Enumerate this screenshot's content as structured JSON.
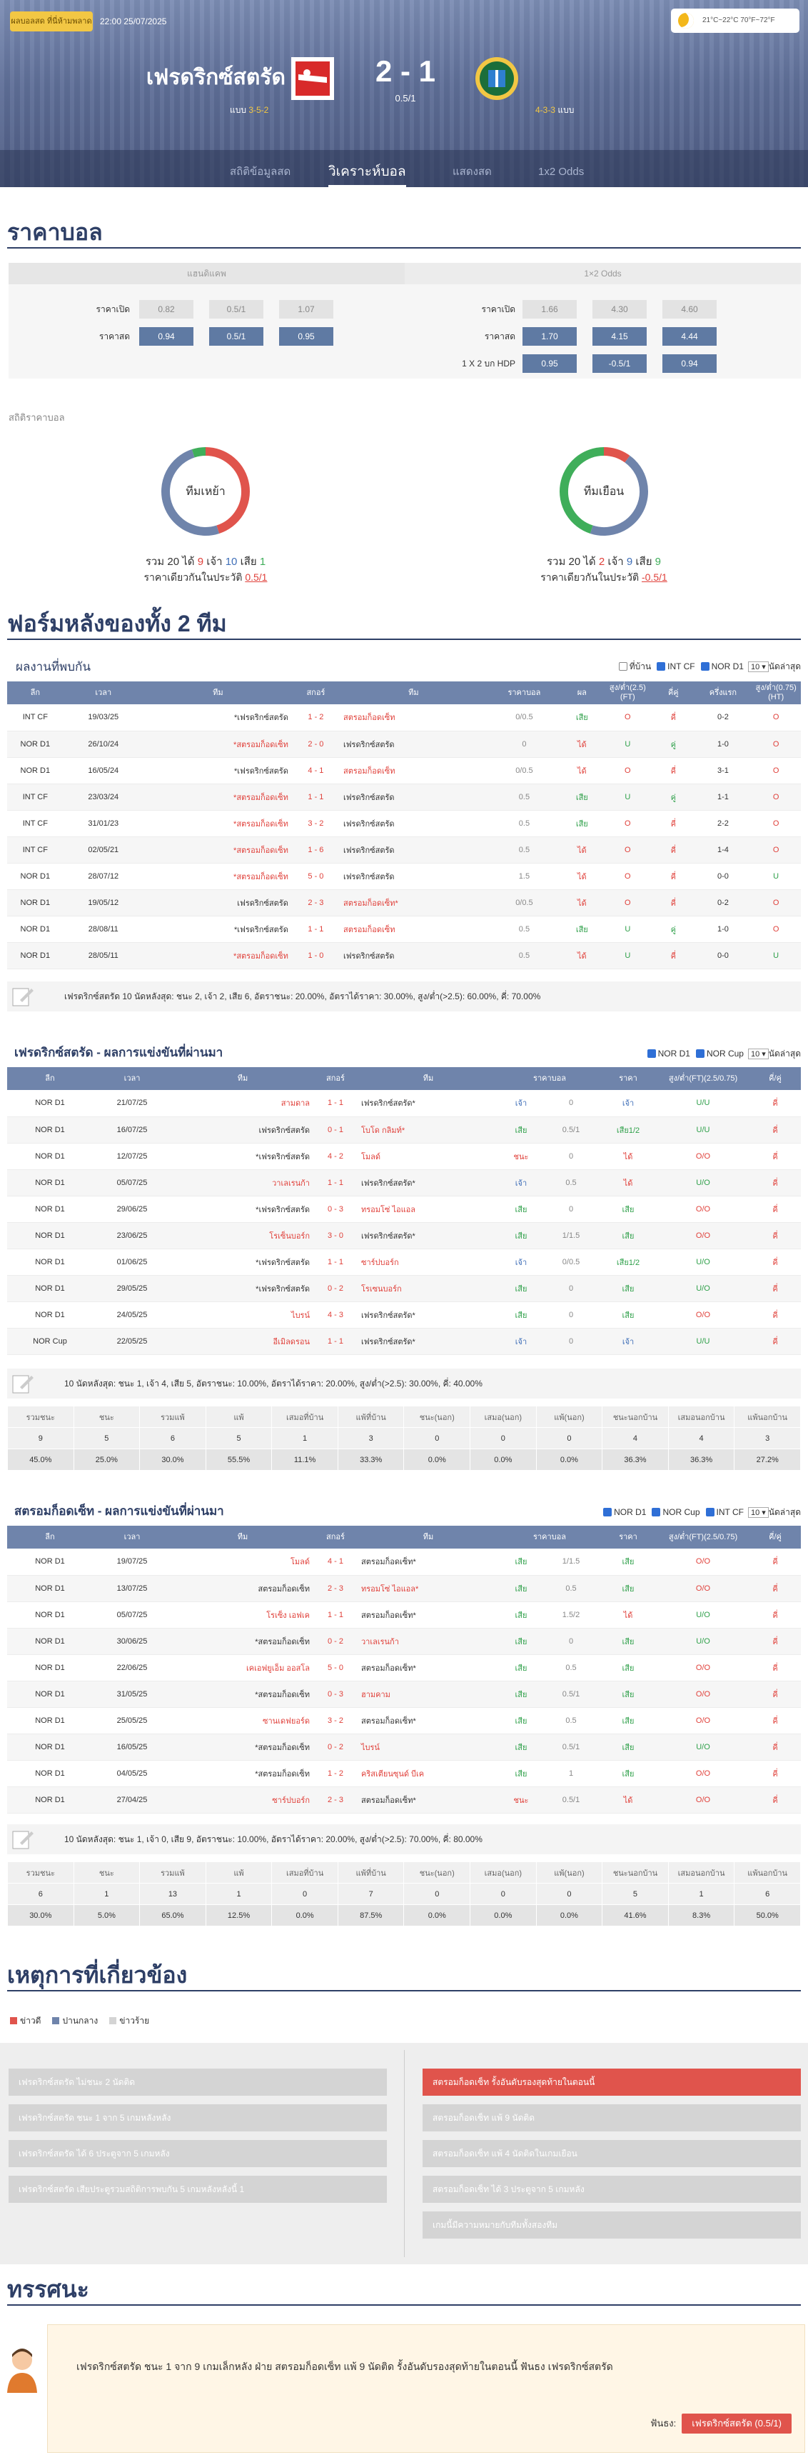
{
  "header": {
    "live_badge": "ผลบอลสด ที่นี่ห้ามพลาด",
    "kickoff": "22:00 25/07/2025",
    "weather": "21°C~22°C 70°F~72°F",
    "home_team": "เฟรดริกซ์สตรัด",
    "away_team": "สตรอมก็อดเซ็ท",
    "score": "2 - 1",
    "handicap": "0.5/1",
    "home_form_label": "แบบ",
    "home_form": "3-5-2",
    "away_form": "4-3-3",
    "away_form_label": "แบบ",
    "tabs": [
      "สถิติข้อมูลสด",
      "วิเคราะห์บอล",
      "แสดงสด",
      "1x2 Odds"
    ],
    "active_tab": "วิเคราะห์บอล"
  },
  "odds": {
    "title": "ราคาบอล",
    "left_head": "แฮนดิแคพ",
    "right_head": "1×2 Odds",
    "ah_rows": [
      {
        "label": "ราคาเปิด",
        "vals": [
          "0.82",
          "0.5/1",
          "1.07"
        ]
      },
      {
        "label": "ราคาสด",
        "vals": [
          "0.94",
          "0.5/1",
          "0.95"
        ]
      }
    ],
    "x12_rows": [
      {
        "label": "ราคาเปิด",
        "vals": [
          "1.66",
          "4.30",
          "4.60"
        ]
      },
      {
        "label": "ราคาสด",
        "vals": [
          "1.70",
          "4.15",
          "4.44"
        ]
      },
      {
        "label": "1 X 2 บก HDP",
        "vals": [
          "0.95",
          "-0.5/1",
          "0.94"
        ]
      }
    ],
    "stats_label": "สถิติราคาบอล",
    "home_donut": {
      "label": "ทีมเหย้า",
      "total": "20",
      "lose": "9",
      "draw": "10",
      "win": "1",
      "total_l": "รวม",
      "lose_l": "ได้",
      "draw_l": "เจ้า",
      "win_l": "เสีย",
      "same_l": "ราคาเดียวกันในประวัติ",
      "same": "0.5/1",
      "colors": [
        "#e0544c",
        "#6f84ab",
        "#3fae5a"
      ],
      "values": [
        9,
        10,
        1
      ]
    },
    "away_donut": {
      "label": "ทีมเยือน",
      "total": "20",
      "lose": "2",
      "draw": "9",
      "win": "9",
      "total_l": "รวม",
      "lose_l": "ได้",
      "draw_l": "เจ้า",
      "win_l": "เสีย",
      "same_l": "ราคาเดียวกันในประวัติ",
      "same": "-0.5/1",
      "colors": [
        "#e0544c",
        "#6f84ab",
        "#3fae5a"
      ],
      "values": [
        2,
        9,
        9
      ]
    }
  },
  "form_title": "ฟอร์มหลังของทั้ง 2 ทีม",
  "h2h": {
    "title": "ผลงานที่พบกัน",
    "filters": [
      "ที่บ้าน",
      "INT CF",
      "NOR D1"
    ],
    "filter_on": [
      false,
      true,
      true
    ],
    "count": "10",
    "count_suffix": "นัดล่าสุด",
    "cols": [
      "ลีก",
      "เวลา",
      "ทีม",
      "สกอร์",
      "ทีม",
      "ราคาบอล",
      "ผล",
      "สูง/ต่ำ(2.5)(FT)",
      "คี่คู่",
      "ครึ่งแรก",
      "สูง/ต่ำ(0.75)(HT)"
    ],
    "rows": [
      [
        "INT CF",
        "19/03/25",
        "*เฟรดริกซ์สตรัด",
        "1 - 2",
        "สตรอมก็อดเซ็ท",
        "0/0.5",
        "เสีย",
        "O",
        "คี่",
        "0-2",
        "O"
      ],
      [
        "NOR D1",
        "26/10/24",
        "*สตรอมก็อดเซ็ท",
        "2 - 0",
        "เฟรดริกซ์สตรัด",
        "0",
        "ได้",
        "U",
        "คู่",
        "1-0",
        "O"
      ],
      [
        "NOR D1",
        "16/05/24",
        "*เฟรดริกซ์สตรัด",
        "4 - 1",
        "สตรอมก็อดเซ็ท",
        "0/0.5",
        "ได้",
        "O",
        "คี่",
        "3-1",
        "O"
      ],
      [
        "INT CF",
        "23/03/24",
        "*สตรอมก็อดเซ็ท",
        "1 - 1",
        "เฟรดริกซ์สตรัด",
        "0.5",
        "เสีย",
        "U",
        "คู่",
        "1-1",
        "O"
      ],
      [
        "INT CF",
        "31/01/23",
        "*สตรอมก็อดเซ็ท",
        "3 - 2",
        "เฟรดริกซ์สตรัด",
        "0.5",
        "เสีย",
        "O",
        "คี่",
        "2-2",
        "O"
      ],
      [
        "INT CF",
        "02/05/21",
        "*สตรอมก็อดเซ็ท",
        "1 - 6",
        "เฟรดริกซ์สตรัด",
        "0.5",
        "ได้",
        "O",
        "คี่",
        "1-4",
        "O"
      ],
      [
        "NOR D1",
        "28/07/12",
        "*สตรอมก็อดเซ็ท",
        "5 - 0",
        "เฟรดริกซ์สตรัด",
        "1.5",
        "ได้",
        "O",
        "คี่",
        "0-0",
        "U"
      ],
      [
        "NOR D1",
        "19/05/12",
        "เฟรดริกซ์สตรัด",
        "2 - 3",
        "สตรอมก็อดเซ็ท*",
        "0/0.5",
        "ได้",
        "O",
        "คี่",
        "0-2",
        "O"
      ],
      [
        "NOR D1",
        "28/08/11",
        "*เฟรดริกซ์สตรัด",
        "1 - 1",
        "สตรอมก็อดเซ็ท",
        "0.5",
        "เสีย",
        "U",
        "คู่",
        "1-0",
        "O"
      ],
      [
        "NOR D1",
        "28/05/11",
        "*สตรอมก็อดเซ็ท",
        "1 - 0",
        "เฟรดริกซ์สตรัด",
        "0.5",
        "ได้",
        "U",
        "คี่",
        "0-0",
        "U"
      ]
    ],
    "summary": "เฟรดริกซ์สตรัด 10 นัดหลังสุด: ชนะ 2, เจ้า 2, เสีย 6, อัตราชนะ: 20.00%, อัตราได้ราคา: 30.00%, สูง/ต่ำ(>2.5): 60.00%, คี่: 70.00%"
  },
  "home_recent": {
    "title": "เฟรดริกซ์สตรัด - ผลการแข่งขันที่ผ่านมา",
    "filters": [
      "NOR D1",
      "NOR Cup"
    ],
    "filter_on": [
      true,
      true
    ],
    "count": "10",
    "count_suffix": "นัดล่าสุด",
    "cols": [
      "ลีก",
      "เวลา",
      "ทีม",
      "สกอร์",
      "ทีม",
      "ราคาบอล",
      "ราคา",
      "สูง/ต่ำ(FT)(2.5/0.75)",
      "คี่/คู่"
    ],
    "rows": [
      [
        "NOR D1",
        "21/07/25",
        "สามดาล",
        "1 - 1",
        "เฟรดริกซ์สตรัด*",
        "เจ้า",
        "0",
        "เจ้า",
        "U/U",
        "คี่"
      ],
      [
        "NOR D1",
        "16/07/25",
        "เฟรดริกซ์สตรัด",
        "0 - 1",
        "โบโด กลิมท์*",
        "เสีย",
        "0.5/1",
        "เสีย1/2",
        "U/U",
        "คี่"
      ],
      [
        "NOR D1",
        "12/07/25",
        "*เฟรดริกซ์สตรัด",
        "4 - 2",
        "โมลด์",
        "ชนะ",
        "0",
        "ได้",
        "O/O",
        "คี่"
      ],
      [
        "NOR D1",
        "05/07/25",
        "วาเลเรนก้า",
        "1 - 1",
        "เฟรดริกซ์สตรัด*",
        "เจ้า",
        "0.5",
        "ได้",
        "U/O",
        "คี่"
      ],
      [
        "NOR D1",
        "29/06/25",
        "*เฟรดริกซ์สตรัด",
        "0 - 3",
        "ทรอมโซ่ ไอแอล",
        "เสีย",
        "0",
        "เสีย",
        "O/O",
        "คี่"
      ],
      [
        "NOR D1",
        "23/06/25",
        "โรเซ็นบอร์ก",
        "3 - 0",
        "เฟรดริกซ์สตรัด*",
        "เสีย",
        "1/1.5",
        "เสีย",
        "O/O",
        "คี่"
      ],
      [
        "NOR D1",
        "01/06/25",
        "*เฟรดริกซ์สตรัด",
        "1 - 1",
        "ซาร์ปบอร์ก",
        "เจ้า",
        "0/0.5",
        "เสีย1/2",
        "U/O",
        "คี่"
      ],
      [
        "NOR D1",
        "29/05/25",
        "*เฟรดริกซ์สตรัด",
        "0 - 2",
        "โรเซนบอร์ก",
        "เสีย",
        "0",
        "เสีย",
        "U/O",
        "คี่"
      ],
      [
        "NOR D1",
        "24/05/25",
        "ไบรน์",
        "4 - 3",
        "เฟรดริกซ์สตรัด*",
        "เสีย",
        "0",
        "เสีย",
        "O/O",
        "คี่"
      ],
      [
        "NOR Cup",
        "22/05/25",
        "อีเมิลดรอน",
        "1 - 1",
        "เฟรดริกซ์สตรัด*",
        "เจ้า",
        "0",
        "เจ้า",
        "U/U",
        "คี่"
      ]
    ],
    "summary": "10 นัดหลังสุด: ชนะ 1, เจ้า 4, เสีย 5, อัตราชนะ: 10.00%, อัตราได้ราคา: 20.00%, สูง/ต่ำ(>2.5): 30.00%, คี่: 40.00%",
    "stat_head": [
      "รวมชนะ",
      "ชนะ",
      "รวมแพ้",
      "แพ้",
      "เสมอที่บ้าน",
      "แพ้ที่บ้าน",
      "ชนะ(นอก)",
      "เสมอ(นอก)",
      "แพ้(นอก)",
      "ชนะนอกบ้าน",
      "เสมอนอกบ้าน",
      "แพ้นอกบ้าน"
    ],
    "stat_vals": [
      "9",
      "5",
      "6",
      "5",
      "1",
      "3",
      "0",
      "0",
      "0",
      "4",
      "4",
      "3"
    ],
    "stat_pct": [
      "45.0%",
      "25.0%",
      "30.0%",
      "55.5%",
      "11.1%",
      "33.3%",
      "0.0%",
      "0.0%",
      "0.0%",
      "36.3%",
      "36.3%",
      "27.2%"
    ]
  },
  "away_recent": {
    "title": "สตรอมก็อดเซ็ท - ผลการแข่งขันที่ผ่านมา",
    "filters": [
      "NOR D1",
      "NOR Cup",
      "INT CF"
    ],
    "filter_on": [
      true,
      true,
      true
    ],
    "count": "10",
    "count_suffix": "นัดล่าสุด",
    "cols": [
      "ลีก",
      "เวลา",
      "ทีม",
      "สกอร์",
      "ทีม",
      "ราคาบอล",
      "ราคา",
      "สูง/ต่ำ(FT)(2.5/0.75)",
      "คี่/คู่"
    ],
    "rows": [
      [
        "NOR D1",
        "19/07/25",
        "โมลด์",
        "4 - 1",
        "สตรอมก็อดเซ็ท*",
        "เสีย",
        "1/1.5",
        "เสีย",
        "O/O",
        "คี่"
      ],
      [
        "NOR D1",
        "13/07/25",
        "สตรอมก็อดเซ็ท",
        "2 - 3",
        "ทรอมโซ่ ไอแอล*",
        "เสีย",
        "0.5",
        "เสีย",
        "O/O",
        "คี่"
      ],
      [
        "NOR D1",
        "05/07/25",
        "โรเซ็ง เอฟเค",
        "1 - 1",
        "สตรอมก็อดเซ็ท*",
        "เสีย",
        "1.5/2",
        "ได้",
        "U/O",
        "คี่"
      ],
      [
        "NOR D1",
        "30/06/25",
        "*สตรอมก็อดเซ็ท",
        "0 - 2",
        "วาเลเรนก้า",
        "เสีย",
        "0",
        "เสีย",
        "U/O",
        "คี่"
      ],
      [
        "NOR D1",
        "22/06/25",
        "เคเอฟยูเอ็ม ออสโล",
        "5 - 0",
        "สตรอมก็อดเซ็ท*",
        "เสีย",
        "0.5",
        "เสีย",
        "O/O",
        "คี่"
      ],
      [
        "NOR D1",
        "31/05/25",
        "*สตรอมก็อดเซ็ท",
        "0 - 3",
        "ฮามคาม",
        "เสีย",
        "0.5/1",
        "เสีย",
        "O/O",
        "คี่"
      ],
      [
        "NOR D1",
        "25/05/25",
        "ซานเดฟยอร์ด",
        "3 - 2",
        "สตรอมก็อดเซ็ท*",
        "เสีย",
        "0.5",
        "เสีย",
        "O/O",
        "คี่"
      ],
      [
        "NOR D1",
        "16/05/25",
        "*สตรอมก็อดเซ็ท",
        "0 - 2",
        "ไบรน์",
        "เสีย",
        "0.5/1",
        "เสีย",
        "U/O",
        "คี่"
      ],
      [
        "NOR D1",
        "04/05/25",
        "*สตรอมก็อดเซ็ท",
        "1 - 2",
        "คริสเตียนซุนด์ บีเค",
        "เสีย",
        "1",
        "เสีย",
        "O/O",
        "คี่"
      ],
      [
        "NOR D1",
        "27/04/25",
        "ซาร์ปบอร์ก",
        "2 - 3",
        "สตรอมก็อดเซ็ท*",
        "ชนะ",
        "0.5/1",
        "ได้",
        "O/O",
        "คี่"
      ]
    ],
    "summary": "10 นัดหลังสุด: ชนะ 1, เจ้า 0, เสีย 9, อัตราชนะ: 10.00%, อัตราได้ราคา: 20.00%, สูง/ต่ำ(>2.5): 70.00%, คี่: 80.00%",
    "stat_head": [
      "รวมชนะ",
      "ชนะ",
      "รวมแพ้",
      "แพ้",
      "เสมอที่บ้าน",
      "แพ้ที่บ้าน",
      "ชนะ(นอก)",
      "เสมอ(นอก)",
      "แพ้(นอก)",
      "ชนะนอกบ้าน",
      "เสมอนอกบ้าน",
      "แพ้นอกบ้าน"
    ],
    "stat_vals": [
      "6",
      "1",
      "13",
      "1",
      "0",
      "7",
      "0",
      "0",
      "0",
      "5",
      "1",
      "6"
    ],
    "stat_pct": [
      "30.0%",
      "5.0%",
      "65.0%",
      "12.5%",
      "0.0%",
      "87.5%",
      "0.0%",
      "0.0%",
      "0.0%",
      "41.6%",
      "8.3%",
      "50.0%"
    ]
  },
  "events": {
    "title": "เหตุการที่เกี่ยวข้อง",
    "legend": [
      "ข่าวดี",
      "ปานกลาง",
      "ข่าวร้าย"
    ],
    "legend_colors": [
      "#e0544c",
      "#6f84ab",
      "#d4d4d4"
    ],
    "left": [
      "เฟรดริกซ์สตรัด ไม่ชนะ 2 นัดติด",
      "เฟรดริกซ์สตรัด ชนะ 1 จาก 5 เกมหลังหลัง",
      "เฟรดริกซ์สตรัด ได้ 6 ประตูจาก 5 เกมหลัง",
      "เฟรดริกซ์สตรัด เสียประตูรวมสถิติการพบกัน 5 เกมหลังหลังนี้ 1"
    ],
    "right": [
      "สตรอมก็อดเซ็ท รั้งอันดับรองสุดท้ายในตอนนี้",
      "สตรอมก็อดเซ็ท แพ้ 9 นัดติด",
      "สตรอมก็อดเซ็ท แพ้ 4 นัดติดในเกมเยือน",
      "สตรอมก็อดเซ็ท ได้ 3 ประตูจาก 5 เกมหลัง",
      "เกมนี้มีความหมายกับทีมทั้งสองทีม"
    ]
  },
  "opinion": {
    "title": "ทรรศนะ",
    "text": "เฟรดริกซ์สตรัด ชนะ 1 จาก 9 เกมเล็กหลัง ฝ่าย สตรอมก็อดเซ็ท แพ้ 9 นัดติด รั้งอันดับรองสุดท้ายในตอนนี้ ฟันธง เฟรดริกซ์สตรัด",
    "pick_label": "ฟันธง:",
    "pick": "เฟรดริกซ์สตรัด",
    "pick_line": "(0.5/1)"
  }
}
